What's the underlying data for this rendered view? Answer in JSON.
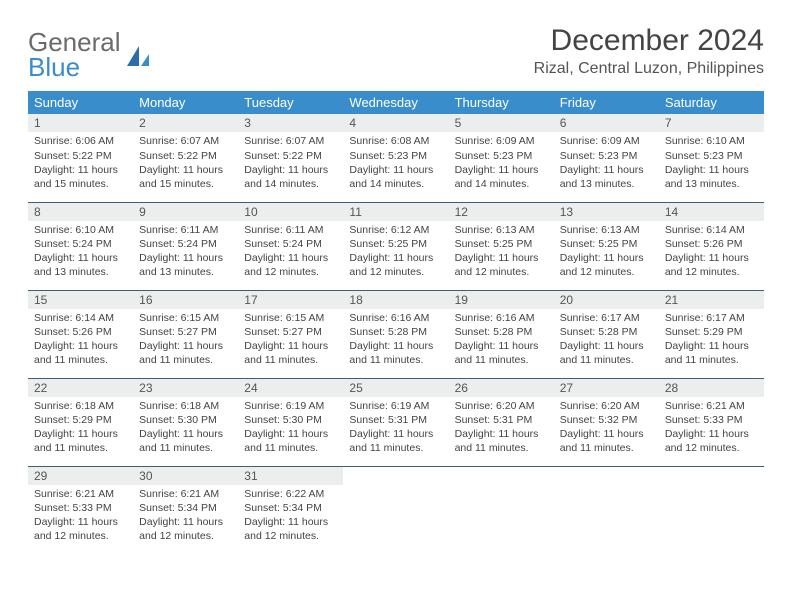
{
  "logo": {
    "line1": "General",
    "line2": "Blue"
  },
  "title": "December 2024",
  "location": "Rizal, Central Luzon, Philippines",
  "colors": {
    "header_bg": "#3a8dcb",
    "header_text": "#ffffff",
    "daynum_bg": "#eceded",
    "row_divider": "#3a5f7d",
    "logo_gray": "#6b6b6b",
    "logo_blue": "#3a8dcb"
  },
  "weekdays": [
    "Sunday",
    "Monday",
    "Tuesday",
    "Wednesday",
    "Thursday",
    "Friday",
    "Saturday"
  ],
  "cells": [
    {
      "n": "1",
      "sr": "6:06 AM",
      "ss": "5:22 PM",
      "dl": "11 hours and 15 minutes."
    },
    {
      "n": "2",
      "sr": "6:07 AM",
      "ss": "5:22 PM",
      "dl": "11 hours and 15 minutes."
    },
    {
      "n": "3",
      "sr": "6:07 AM",
      "ss": "5:22 PM",
      "dl": "11 hours and 14 minutes."
    },
    {
      "n": "4",
      "sr": "6:08 AM",
      "ss": "5:23 PM",
      "dl": "11 hours and 14 minutes."
    },
    {
      "n": "5",
      "sr": "6:09 AM",
      "ss": "5:23 PM",
      "dl": "11 hours and 14 minutes."
    },
    {
      "n": "6",
      "sr": "6:09 AM",
      "ss": "5:23 PM",
      "dl": "11 hours and 13 minutes."
    },
    {
      "n": "7",
      "sr": "6:10 AM",
      "ss": "5:23 PM",
      "dl": "11 hours and 13 minutes."
    },
    {
      "n": "8",
      "sr": "6:10 AM",
      "ss": "5:24 PM",
      "dl": "11 hours and 13 minutes."
    },
    {
      "n": "9",
      "sr": "6:11 AM",
      "ss": "5:24 PM",
      "dl": "11 hours and 13 minutes."
    },
    {
      "n": "10",
      "sr": "6:11 AM",
      "ss": "5:24 PM",
      "dl": "11 hours and 12 minutes."
    },
    {
      "n": "11",
      "sr": "6:12 AM",
      "ss": "5:25 PM",
      "dl": "11 hours and 12 minutes."
    },
    {
      "n": "12",
      "sr": "6:13 AM",
      "ss": "5:25 PM",
      "dl": "11 hours and 12 minutes."
    },
    {
      "n": "13",
      "sr": "6:13 AM",
      "ss": "5:25 PM",
      "dl": "11 hours and 12 minutes."
    },
    {
      "n": "14",
      "sr": "6:14 AM",
      "ss": "5:26 PM",
      "dl": "11 hours and 12 minutes."
    },
    {
      "n": "15",
      "sr": "6:14 AM",
      "ss": "5:26 PM",
      "dl": "11 hours and 11 minutes."
    },
    {
      "n": "16",
      "sr": "6:15 AM",
      "ss": "5:27 PM",
      "dl": "11 hours and 11 minutes."
    },
    {
      "n": "17",
      "sr": "6:15 AM",
      "ss": "5:27 PM",
      "dl": "11 hours and 11 minutes."
    },
    {
      "n": "18",
      "sr": "6:16 AM",
      "ss": "5:28 PM",
      "dl": "11 hours and 11 minutes."
    },
    {
      "n": "19",
      "sr": "6:16 AM",
      "ss": "5:28 PM",
      "dl": "11 hours and 11 minutes."
    },
    {
      "n": "20",
      "sr": "6:17 AM",
      "ss": "5:28 PM",
      "dl": "11 hours and 11 minutes."
    },
    {
      "n": "21",
      "sr": "6:17 AM",
      "ss": "5:29 PM",
      "dl": "11 hours and 11 minutes."
    },
    {
      "n": "22",
      "sr": "6:18 AM",
      "ss": "5:29 PM",
      "dl": "11 hours and 11 minutes."
    },
    {
      "n": "23",
      "sr": "6:18 AM",
      "ss": "5:30 PM",
      "dl": "11 hours and 11 minutes."
    },
    {
      "n": "24",
      "sr": "6:19 AM",
      "ss": "5:30 PM",
      "dl": "11 hours and 11 minutes."
    },
    {
      "n": "25",
      "sr": "6:19 AM",
      "ss": "5:31 PM",
      "dl": "11 hours and 11 minutes."
    },
    {
      "n": "26",
      "sr": "6:20 AM",
      "ss": "5:31 PM",
      "dl": "11 hours and 11 minutes."
    },
    {
      "n": "27",
      "sr": "6:20 AM",
      "ss": "5:32 PM",
      "dl": "11 hours and 11 minutes."
    },
    {
      "n": "28",
      "sr": "6:21 AM",
      "ss": "5:33 PM",
      "dl": "11 hours and 12 minutes."
    },
    {
      "n": "29",
      "sr": "6:21 AM",
      "ss": "5:33 PM",
      "dl": "11 hours and 12 minutes."
    },
    {
      "n": "30",
      "sr": "6:21 AM",
      "ss": "5:34 PM",
      "dl": "11 hours and 12 minutes."
    },
    {
      "n": "31",
      "sr": "6:22 AM",
      "ss": "5:34 PM",
      "dl": "11 hours and 12 minutes."
    }
  ],
  "labels": {
    "sunrise": "Sunrise:",
    "sunset": "Sunset:",
    "daylight": "Daylight:"
  }
}
